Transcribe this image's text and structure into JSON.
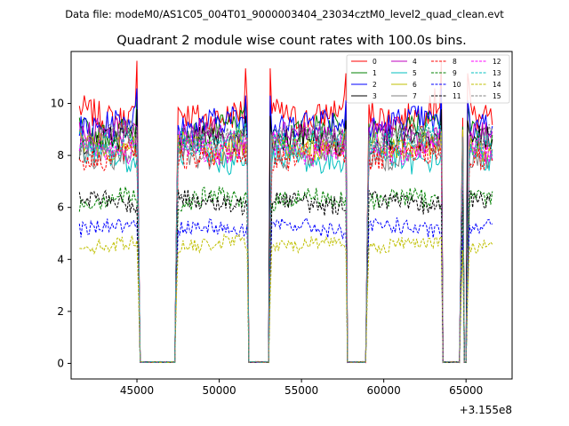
{
  "chart_data": {
    "type": "line",
    "suptitle": "Data file: modeM0/AS1C05_004T01_9000003404_23034cztM0_level2_quad_clean.evt",
    "title": "Quadrant 2 module wise count rates with 100.0s bins.",
    "xlabel": "",
    "ylabel": "",
    "x_offset_label": "+3.155e8",
    "xlim": [
      41000,
      67800
    ],
    "ylim": [
      -0.6,
      12.0
    ],
    "x_ticks": [
      45000,
      50000,
      55000,
      60000,
      65000
    ],
    "x_tick_labels": [
      "45000",
      "50000",
      "55000",
      "60000",
      "65000"
    ],
    "y_ticks": [
      0,
      2,
      4,
      6,
      8,
      10
    ],
    "y_tick_labels": [
      "0",
      "2",
      "4",
      "6",
      "8",
      "10"
    ],
    "legend": "top-right",
    "bin_width_s": 100,
    "x_start": 41500,
    "x_end": 66650,
    "gaps": [
      [
        45200,
        47300
      ],
      [
        51800,
        53000
      ],
      [
        57800,
        58900
      ],
      [
        63600,
        64600
      ],
      [
        64900,
        65000
      ],
      [
        66650,
        66750
      ]
    ],
    "transition_bins": [
      [
        45100,
        0.55
      ],
      [
        47400,
        0.55
      ],
      [
        51900,
        0.5
      ],
      [
        53100,
        0.55
      ],
      [
        57900,
        0.55
      ],
      [
        59000,
        0.55
      ],
      [
        63700,
        0.5
      ],
      [
        64700,
        0.55
      ],
      [
        65100,
        0.55
      ],
      [
        66650,
        0.15
      ]
    ],
    "spikes": [
      [
        45000,
        1.15
      ],
      [
        51600,
        1.12
      ],
      [
        53100,
        1.12
      ],
      [
        57700,
        1.1
      ],
      [
        63100,
        1.04
      ],
      [
        63500,
        1.15
      ],
      [
        65100,
        1.1
      ],
      [
        65200,
        1.05
      ]
    ],
    "series": [
      {
        "name": "0",
        "color": "#ff0000",
        "dash": "solid",
        "level": 9.6
      },
      {
        "name": "1",
        "color": "#008000",
        "dash": "solid",
        "level": 9.0
      },
      {
        "name": "2",
        "color": "#0000ff",
        "dash": "solid",
        "level": 9.2
      },
      {
        "name": "3",
        "color": "#000000",
        "dash": "solid",
        "level": 8.5
      },
      {
        "name": "4",
        "color": "#bf00bf",
        "dash": "solid",
        "level": 8.8
      },
      {
        "name": "5",
        "color": "#00bfbf",
        "dash": "solid",
        "level": 7.9
      },
      {
        "name": "6",
        "color": "#bfbf00",
        "dash": "solid",
        "level": 8.4
      },
      {
        "name": "7",
        "color": "#808080",
        "dash": "solid",
        "level": 8.1
      },
      {
        "name": "8",
        "color": "#ff0000",
        "dash": "dashed",
        "level": 8.0
      },
      {
        "name": "9",
        "color": "#008000",
        "dash": "dashed",
        "level": 6.3
      },
      {
        "name": "10",
        "color": "#0000ff",
        "dash": "dashed",
        "level": 5.2
      },
      {
        "name": "11",
        "color": "#000000",
        "dash": "dashed",
        "level": 6.2
      },
      {
        "name": "12",
        "color": "#ff00ff",
        "dash": "dashed",
        "level": 8.3
      },
      {
        "name": "13",
        "color": "#00bfbf",
        "dash": "dashed",
        "level": 8.6
      },
      {
        "name": "14",
        "color": "#bfbf00",
        "dash": "dashed",
        "level": 4.6
      },
      {
        "name": "15",
        "color": "#808080",
        "dash": "dashed",
        "level": 8.7
      }
    ]
  }
}
